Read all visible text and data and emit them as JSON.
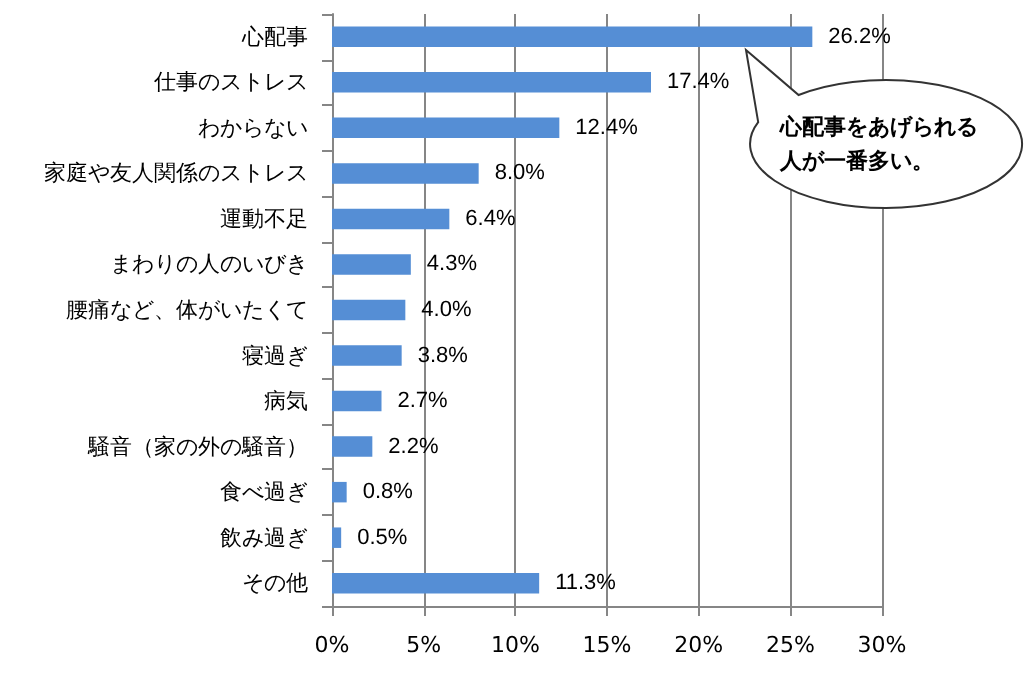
{
  "chart_data": {
    "type": "bar",
    "orientation": "horizontal",
    "categories": [
      "心配事",
      "仕事のストレス",
      "わからない",
      "家庭や友人関係のストレス",
      "運動不足",
      "まわりの人のいびき",
      "腰痛など、体がいたくて",
      "寝過ぎ",
      "病気",
      "騒音（家の外の騒音）",
      "食べ過ぎ",
      "飲み過ぎ",
      "その他"
    ],
    "values": [
      26.2,
      17.4,
      12.4,
      8.0,
      6.4,
      4.3,
      4.0,
      3.8,
      2.7,
      2.2,
      0.8,
      0.5,
      11.3
    ],
    "value_labels": [
      "26.2%",
      "17.4%",
      "12.4%",
      "8.0%",
      "6.4%",
      "4.3%",
      "4.0%",
      "3.8%",
      "2.7%",
      "2.2%",
      "0.8%",
      "0.5%",
      "11.3%"
    ],
    "color": "#558ed5",
    "xlim": [
      0,
      30
    ],
    "xticks": [
      {
        "value": 0,
        "label": "0%"
      },
      {
        "value": 5,
        "label": "5%"
      },
      {
        "value": 10,
        "label": "10%"
      },
      {
        "value": 15,
        "label": "15%"
      },
      {
        "value": 20,
        "label": "20%"
      },
      {
        "value": 25,
        "label": "25%"
      },
      {
        "value": 30,
        "label": "30%"
      }
    ],
    "grid": "x",
    "annotations": [
      "心配事をあげられる人が一番多い。"
    ]
  }
}
